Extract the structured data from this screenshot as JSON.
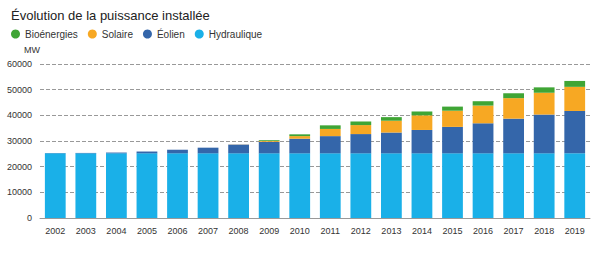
{
  "chart_data": {
    "type": "bar",
    "title": "Évolution de la puissance installée",
    "y_label": "MW",
    "categories": [
      "2002",
      "2003",
      "2004",
      "2005",
      "2006",
      "2007",
      "2008",
      "2009",
      "2010",
      "2011",
      "2012",
      "2013",
      "2014",
      "2015",
      "2016",
      "2017",
      "2018",
      "2019"
    ],
    "series": [
      {
        "name": "Hydraulique",
        "color": "#1ab0e8",
        "values": [
          25200,
          25200,
          25200,
          25200,
          25200,
          25200,
          25200,
          25200,
          25200,
          25200,
          25200,
          25200,
          25200,
          25200,
          25200,
          25200,
          25200,
          25200
        ]
      },
      {
        "name": "Éolien",
        "color": "#3466aa",
        "values": [
          100,
          150,
          300,
          700,
          1400,
          2200,
          3400,
          4500,
          5700,
          6700,
          7500,
          8100,
          9100,
          10300,
          11700,
          13500,
          15100,
          16500
        ]
      },
      {
        "name": "Solaire",
        "color": "#f7a823",
        "values": [
          0,
          0,
          0,
          0,
          0,
          0,
          50,
          300,
          1000,
          2800,
          3500,
          4600,
          5700,
          6300,
          6900,
          8000,
          8500,
          9400
        ]
      },
      {
        "name": "Bioénergies",
        "color": "#3fa535",
        "values": [
          0,
          0,
          0,
          0,
          0,
          0,
          0,
          300,
          700,
          1400,
          1400,
          1400,
          1500,
          1600,
          1700,
          1900,
          2100,
          2300
        ]
      }
    ],
    "ylim": [
      0,
      60000
    ],
    "yticks": [
      0,
      10000,
      20000,
      30000,
      40000,
      50000,
      60000
    ],
    "stacked": true,
    "grid": true,
    "legend": "top-left"
  }
}
